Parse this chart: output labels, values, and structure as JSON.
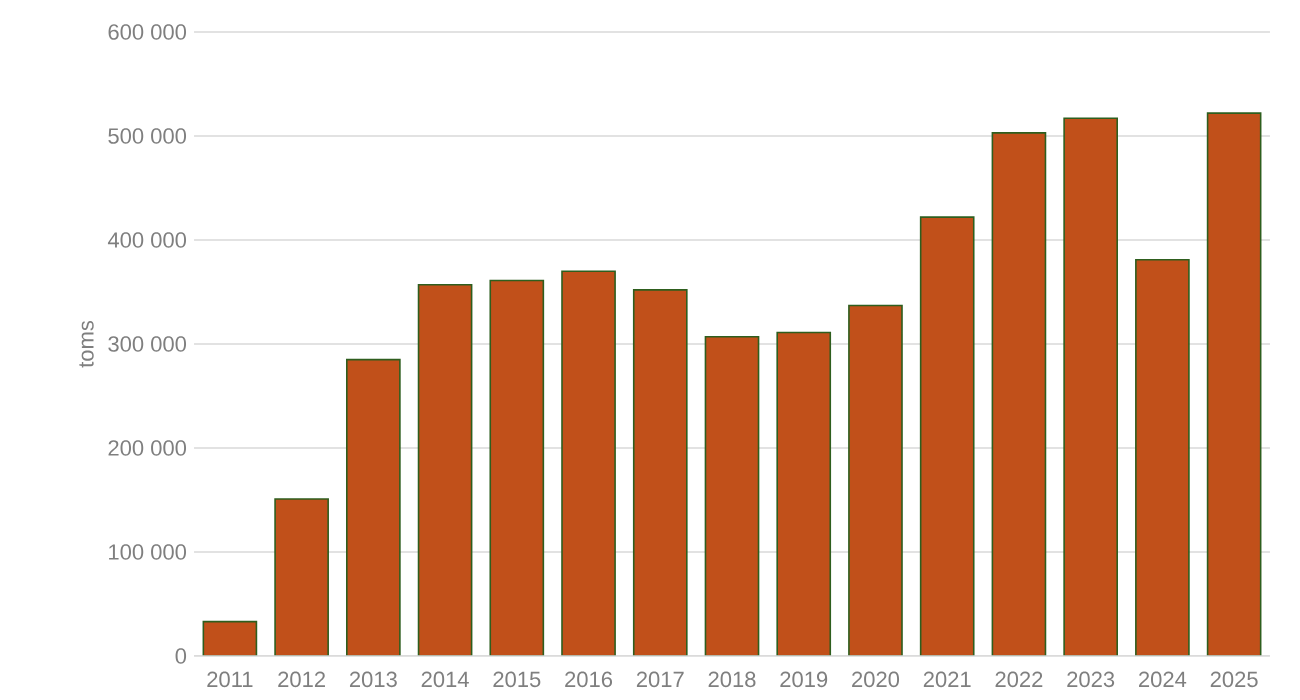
{
  "chart_data": {
    "type": "bar",
    "ylabel": "toms",
    "categories": [
      "2011",
      "2012",
      "2013",
      "2014",
      "2015",
      "2016",
      "2017",
      "2018",
      "2019",
      "2020",
      "2021",
      "2022",
      "2023",
      "2024",
      "2025"
    ],
    "values": [
      33000,
      151000,
      285000,
      357000,
      361000,
      370000,
      352000,
      307000,
      311000,
      337000,
      422000,
      503000,
      517000,
      381000,
      522000
    ],
    "color": "#c1501a",
    "ylim": [
      0,
      600000
    ],
    "yticks": [
      {
        "value": 0,
        "label": "0"
      },
      {
        "value": 100000,
        "label": "100 000"
      },
      {
        "value": 200000,
        "label": "200 000"
      },
      {
        "value": 300000,
        "label": "300 000"
      },
      {
        "value": 400000,
        "label": "400 000"
      },
      {
        "value": 500000,
        "label": "500 000"
      },
      {
        "value": 600000,
        "label": "600 000"
      }
    ],
    "grid": "y"
  }
}
